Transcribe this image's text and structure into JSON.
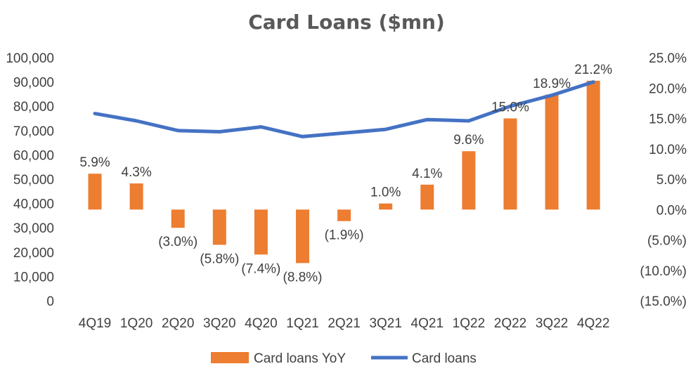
{
  "chart_data": {
    "type": "bar+line",
    "title": "Card Loans ($mn)",
    "categories": [
      "4Q19",
      "1Q20",
      "2Q20",
      "3Q20",
      "4Q20",
      "1Q21",
      "2Q21",
      "3Q21",
      "4Q21",
      "1Q22",
      "2Q22",
      "3Q22",
      "4Q22"
    ],
    "series": [
      {
        "name": "Card loans YoY",
        "type": "bar",
        "axis": "right",
        "color": "#ED7D31",
        "values": [
          5.9,
          4.3,
          -3.0,
          -5.8,
          -7.4,
          -8.8,
          -1.9,
          1.0,
          4.1,
          9.6,
          15.0,
          18.9,
          21.2
        ],
        "labels": [
          "5.9%",
          "4.3%",
          "(3.0%)",
          "(5.8%)",
          "(7.4%)",
          "(8.8%)",
          "(1.9%)",
          "1.0%",
          "4.1%",
          "9.6%",
          "15.0%",
          "18.9%",
          "21.2%"
        ]
      },
      {
        "name": "Card loans",
        "type": "line",
        "axis": "left",
        "color": "#4472C4",
        "values": [
          77000,
          74000,
          70000,
          69500,
          71500,
          67500,
          69000,
          70500,
          74500,
          74000,
          80000,
          84500,
          90000
        ]
      }
    ],
    "y_left": {
      "ylim": [
        0,
        100000
      ],
      "ticks": [
        0,
        10000,
        20000,
        30000,
        40000,
        50000,
        60000,
        70000,
        80000,
        90000,
        100000
      ],
      "tick_labels": [
        "0",
        "10,000",
        "20,000",
        "30,000",
        "40,000",
        "50,000",
        "60,000",
        "70,000",
        "80,000",
        "90,000",
        "100,000"
      ]
    },
    "y_right": {
      "ylim": [
        -15,
        25
      ],
      "ticks": [
        -15,
        -10,
        -5,
        0,
        5,
        10,
        15,
        20,
        25
      ],
      "tick_labels": [
        "(15.0%)",
        "(10.0%)",
        "(5.0%)",
        "0.0%",
        "5.0%",
        "10.0%",
        "15.0%",
        "20.0%",
        "25.0%"
      ]
    },
    "grid": false,
    "legend": {
      "placement": "bottom"
    }
  }
}
